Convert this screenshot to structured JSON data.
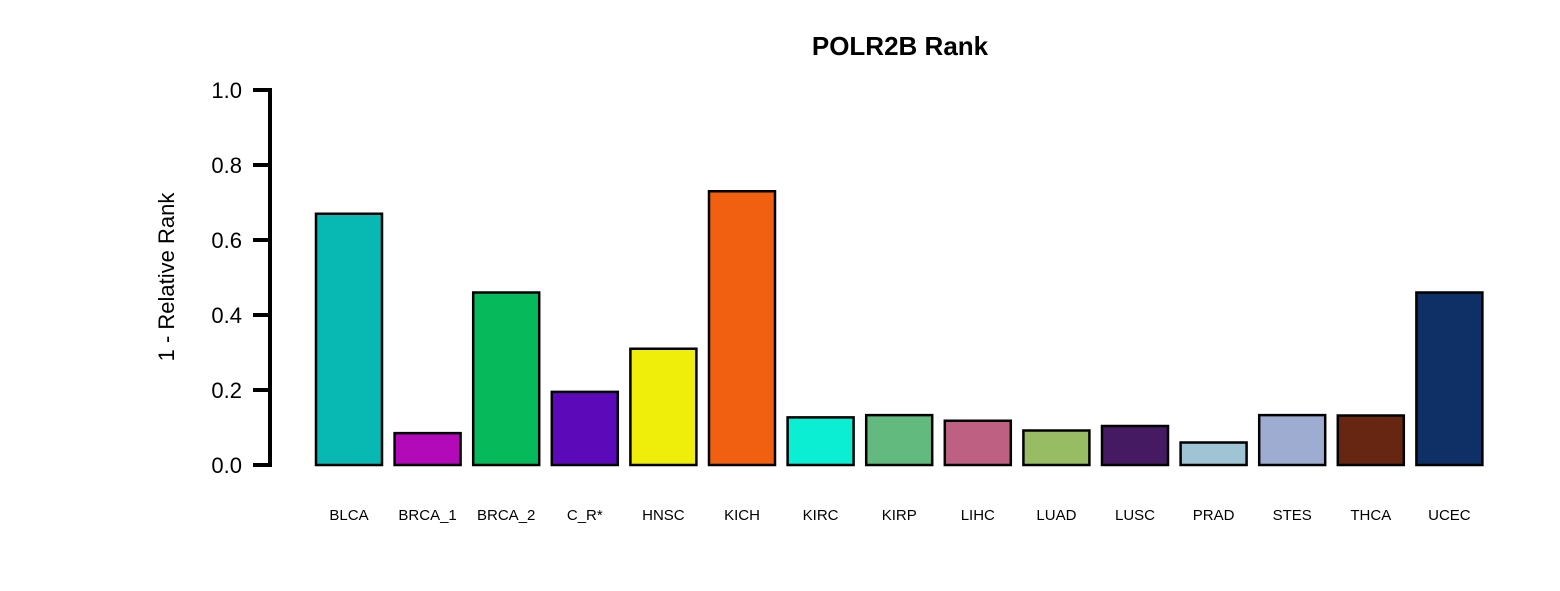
{
  "chart_data": {
    "type": "bar",
    "title": "POLR2B Rank",
    "xlabel": "",
    "ylabel": "1 - Relative Rank",
    "ylim": [
      0,
      1
    ],
    "yticks": [
      "0.0",
      "0.2",
      "0.4",
      "0.6",
      "0.8",
      "1.0"
    ],
    "grid": false,
    "legend": "none",
    "categories": [
      "BLCA",
      "BRCA_1",
      "BRCA_2",
      "C_R*",
      "HNSC",
      "KICH",
      "KIRC",
      "KIRP",
      "LIHC",
      "LUAD",
      "LUSC",
      "PRAD",
      "STES",
      "THCA",
      "UCEC"
    ],
    "values": [
      0.67,
      0.085,
      0.46,
      0.195,
      0.31,
      0.73,
      0.127,
      0.133,
      0.118,
      0.092,
      0.104,
      0.06,
      0.133,
      0.132,
      0.46
    ],
    "colors": [
      "#08B9B3",
      "#B209B9",
      "#06B95A",
      "#5C0AB9",
      "#EEEE0A",
      "#F06010",
      "#0CEED4",
      "#63BA7F",
      "#BE6081",
      "#97BC63",
      "#461A63",
      "#9FC5D4",
      "#9FACD2",
      "#662612",
      "#0E3066"
    ]
  }
}
